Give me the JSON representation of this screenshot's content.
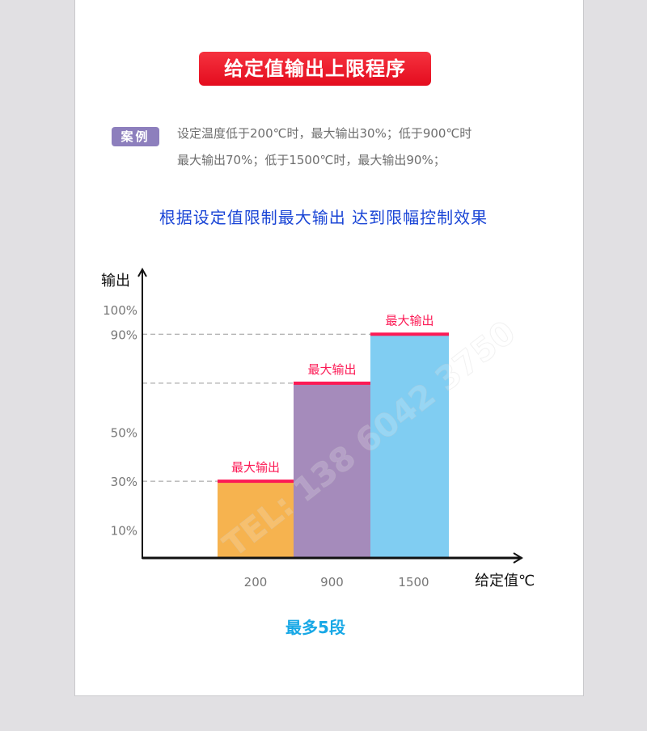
{
  "header": {
    "title": "给定值输出上限程序"
  },
  "case": {
    "tag": "案例",
    "lines": [
      "设定温度低于200℃时，最大输出30%；低于900℃时",
      "最大输出70%；低于1500℃时，最大输出90%；"
    ]
  },
  "subtitle": "根据设定值限制最大输出 达到限幅控制效果",
  "footer": "最多5段",
  "watermark": "TEL: 138 6042 3750",
  "chart_data": {
    "type": "bar",
    "xlabel": "给定值℃",
    "ylabel": "输出",
    "categories": [
      "200",
      "900",
      "1500"
    ],
    "values": [
      30,
      70,
      90
    ],
    "bar_colors": [
      "#f6b34f",
      "#a58bbb",
      "#80cdf2"
    ],
    "limit_color": "#fc1a55",
    "data_labels": [
      "最大输出",
      "最大输出",
      "最大输出"
    ],
    "yticks": [
      "100%",
      "90%",
      "50%",
      "30%",
      "10%"
    ],
    "ytick_values": [
      100,
      90,
      50,
      30,
      10
    ],
    "ylim": [
      0,
      100
    ],
    "grid": false
  }
}
